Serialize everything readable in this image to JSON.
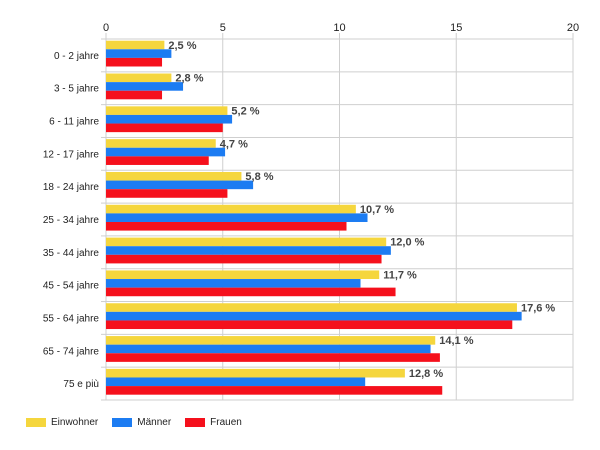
{
  "chart_data": {
    "type": "bar",
    "orientation": "horizontal",
    "categories": [
      "0 - 2 jahre",
      "3 - 5 jahre",
      "6 - 11 jahre",
      "12 - 17 jahre",
      "18 - 24 jahre",
      "25 - 34 jahre",
      "35 - 44 jahre",
      "45 - 54 jahre",
      "55 - 64 jahre",
      "65 - 74 jahre",
      "75 e più"
    ],
    "series": [
      {
        "name": "Einwohner",
        "color": "#f5d63d",
        "values": [
          2.5,
          2.8,
          5.2,
          4.7,
          5.8,
          10.7,
          12.0,
          11.7,
          17.6,
          14.1,
          12.8
        ]
      },
      {
        "name": "Männer",
        "color": "#1c7cf2",
        "values": [
          2.8,
          3.3,
          5.4,
          5.1,
          6.3,
          11.2,
          12.2,
          10.9,
          17.8,
          13.9,
          11.1
        ]
      },
      {
        "name": "Frauen",
        "color": "#f5101c",
        "values": [
          2.4,
          2.4,
          5.0,
          4.4,
          5.2,
          10.3,
          11.8,
          12.4,
          17.4,
          14.3,
          14.4
        ]
      }
    ],
    "data_labels": [
      "2,5 %",
      "2,8 %",
      "5,2 %",
      "4,7 %",
      "5,8 %",
      "10,7 %",
      "12,0 %",
      "11,7 %",
      "17,6 %",
      "14,1 %",
      "12,8 %"
    ],
    "xticks": [
      "0",
      "5",
      "10",
      "15",
      "20"
    ],
    "xlim": [
      0,
      20
    ],
    "grid": true,
    "legend_position": "bottom-left"
  }
}
